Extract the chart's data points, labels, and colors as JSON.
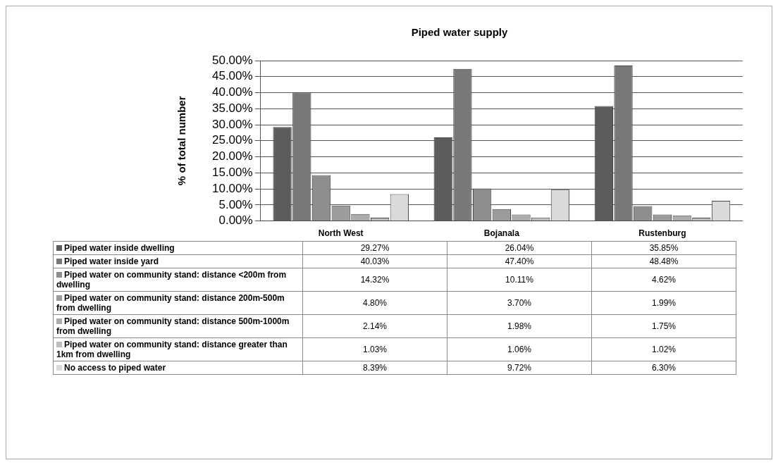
{
  "chart_data": {
    "type": "bar",
    "title": "Piped water supply",
    "ylabel": "% of total number",
    "categories": [
      "North West",
      "Bojanala",
      "Rustenburg"
    ],
    "ylim": [
      0,
      50
    ],
    "yticks": [
      {
        "value": 0,
        "label": "0.00%"
      },
      {
        "value": 5,
        "label": "5.00%"
      },
      {
        "value": 10,
        "label": "10.00%"
      },
      {
        "value": 15,
        "label": "15.00%"
      },
      {
        "value": 20,
        "label": "20.00%"
      },
      {
        "value": 25,
        "label": "25.00%"
      },
      {
        "value": 30,
        "label": "30.00%"
      },
      {
        "value": 35,
        "label": "35.00%"
      },
      {
        "value": 40,
        "label": "40.00%"
      },
      {
        "value": 45,
        "label": "45.00%"
      },
      {
        "value": 50,
        "label": "50.00%"
      }
    ],
    "grid": "y",
    "legend": "bottom",
    "series": [
      {
        "name": "Piped water inside dwelling",
        "color": "#5c5c5c",
        "values": [
          29.27,
          26.04,
          35.85
        ],
        "value_labels": [
          "29.27%",
          "26.04%",
          "35.85%"
        ]
      },
      {
        "name": "Piped water inside yard",
        "color": "#787878",
        "values": [
          40.03,
          47.4,
          48.48
        ],
        "value_labels": [
          "40.03%",
          "47.40%",
          "48.48%"
        ]
      },
      {
        "name": "Piped water on community stand: distance <200m from dwelling",
        "color": "#8e8e8e",
        "values": [
          14.32,
          10.11,
          4.62
        ],
        "value_labels": [
          "14.32%",
          "10.11%",
          "4.62%"
        ]
      },
      {
        "name": "Piped water on community stand: distance 200m-500m from dwelling",
        "color": "#9c9c9c",
        "values": [
          4.8,
          3.7,
          1.99
        ],
        "value_labels": [
          "4.80%",
          "3.70%",
          "1.99%"
        ]
      },
      {
        "name": "Piped water on community stand: distance 500m-1000m from dwelling",
        "color": "#acacac",
        "values": [
          2.14,
          1.98,
          1.75
        ],
        "value_labels": [
          "2.14%",
          "1.98%",
          "1.75%"
        ]
      },
      {
        "name": "Piped water on community stand: distance greater than 1km from dwelling",
        "color": "#bebebe",
        "values": [
          1.03,
          1.06,
          1.02
        ],
        "value_labels": [
          "1.03%",
          "1.06%",
          "1.02%"
        ]
      },
      {
        "name": "No access to piped water",
        "color": "#dadada",
        "values": [
          8.39,
          9.72,
          6.3
        ],
        "value_labels": [
          "8.39%",
          "9.72%",
          "6.30%"
        ]
      }
    ]
  }
}
